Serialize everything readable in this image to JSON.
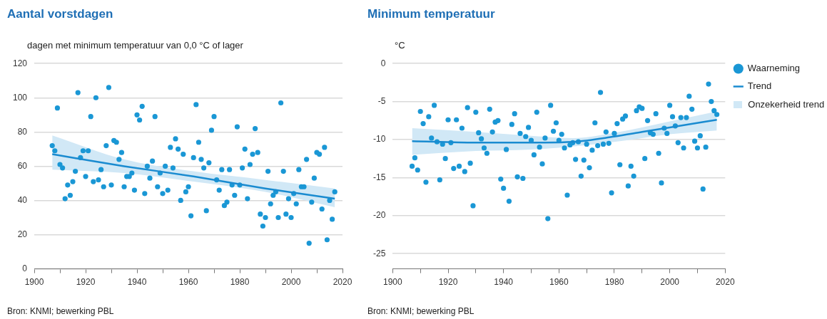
{
  "chart_data": [
    {
      "type": "scatter",
      "title": "Aantal vorstdagen",
      "ylabel": "dagen met minimum temperatuur van 0,0 °C of lager",
      "xlim": [
        1900,
        2020
      ],
      "xticks": [
        1900,
        {
          "value": 1910,
          "label": null
        },
        1920,
        {
          "value": 1930,
          "label": null
        },
        1940,
        {
          "value": 1950,
          "label": null
        },
        1960,
        {
          "value": 1970,
          "label": null
        },
        1980,
        {
          "value": 1990,
          "label": null
        },
        2000,
        {
          "value": 2010,
          "label": null
        },
        2020
      ],
      "ylim": [
        0,
        120
      ],
      "yticks": [
        0,
        20,
        40,
        60,
        80,
        100,
        120
      ],
      "grid": "y",
      "legend": false,
      "line_style": "solid",
      "annotations": [
        "Bron: KNMI; bewerking PBL"
      ],
      "series": [
        {
          "type": "scatter",
          "marker": "circle",
          "color": "#1a97d5",
          "x": [
            1907,
            1908,
            1909,
            1910,
            1911,
            1912,
            1913,
            1914,
            1915,
            1916,
            1917,
            1918,
            1919,
            1920,
            1921,
            1922,
            1923,
            1924,
            1925,
            1926,
            1927,
            1928,
            1929,
            1930,
            1931,
            1932,
            1933,
            1934,
            1935,
            1936,
            1937,
            1938,
            1939,
            1940,
            1941,
            1942,
            1943,
            1944,
            1945,
            1946,
            1947,
            1948,
            1949,
            1950,
            1951,
            1952,
            1953,
            1954,
            1955,
            1956,
            1957,
            1958,
            1959,
            1960,
            1961,
            1962,
            1963,
            1964,
            1965,
            1966,
            1967,
            1968,
            1969,
            1970,
            1971,
            1972,
            1973,
            1974,
            1975,
            1976,
            1977,
            1978,
            1979,
            1980,
            1981,
            1982,
            1983,
            1984,
            1985,
            1986,
            1987,
            1988,
            1989,
            1990,
            1991,
            1992,
            1993,
            1994,
            1995,
            1996,
            1997,
            1998,
            1999,
            2000,
            2001,
            2002,
            2003,
            2004,
            2005,
            2006,
            2007,
            2008,
            2009,
            2010,
            2011,
            2012,
            2013,
            2014,
            2015,
            2016,
            2017
          ],
          "values": [
            72,
            69,
            94,
            61,
            59,
            41,
            49,
            43,
            51,
            57,
            103,
            65,
            69,
            54,
            69,
            89,
            51,
            100,
            52,
            58,
            48,
            72,
            106,
            49,
            75,
            74,
            64,
            68,
            48,
            54,
            54,
            56,
            46,
            90,
            87,
            95,
            44,
            60,
            53,
            63,
            89,
            48,
            56,
            44,
            60,
            46,
            71,
            59,
            76,
            70,
            40,
            67,
            45,
            48,
            31,
            65,
            96,
            74,
            64,
            59,
            34,
            62,
            81,
            89,
            52,
            46,
            58,
            37,
            39,
            58,
            49,
            43,
            83,
            49,
            59,
            70,
            41,
            61,
            67,
            82,
            68,
            32,
            25,
            30,
            57,
            38,
            43,
            45,
            30,
            97,
            57,
            32,
            41,
            30,
            44,
            38,
            58,
            48,
            48,
            64,
            15,
            39,
            53,
            68,
            67,
            35,
            71,
            17,
            40,
            29,
            45
          ]
        },
        {
          "type": "line",
          "marker": "none",
          "color": "#1a8bd0",
          "x": [
            1907,
            1935,
            1962,
            1990,
            2017
          ],
          "values": [
            67,
            60,
            54,
            47,
            41
          ],
          "lower": [
            58,
            56,
            51,
            45,
            36
          ],
          "upper": [
            78,
            64,
            57,
            52,
            47
          ]
        }
      ]
    },
    {
      "type": "scatter",
      "title": "Minimum temperatuur",
      "ylabel": "°C",
      "xlim": [
        1900,
        2020
      ],
      "xticks": [
        1900,
        {
          "value": 1910,
          "label": null
        },
        1920,
        {
          "value": 1930,
          "label": null
        },
        1940,
        {
          "value": 1950,
          "label": null
        },
        1960,
        {
          "value": 1970,
          "label": null
        },
        1980,
        {
          "value": 1990,
          "label": null
        },
        2000,
        {
          "value": 2010,
          "label": null
        },
        2020
      ],
      "ylim": [
        -27,
        0
      ],
      "yticks": [
        -25,
        -20,
        -15,
        -10,
        -5,
        0
      ],
      "grid": "y",
      "legend": "right",
      "line_style": "solid",
      "annotations": [
        "Onzekerheid trend",
        "Bron: KNMI; bewerking PBL"
      ],
      "series": [
        {
          "name": "Waarneming",
          "type": "scatter",
          "marker": "circle",
          "color": "#1a97d5",
          "x": [
            1907,
            1908,
            1909,
            1910,
            1911,
            1912,
            1913,
            1914,
            1915,
            1916,
            1917,
            1918,
            1919,
            1920,
            1921,
            1922,
            1923,
            1924,
            1925,
            1926,
            1927,
            1928,
            1929,
            1930,
            1931,
            1932,
            1933,
            1934,
            1935,
            1936,
            1937,
            1938,
            1939,
            1940,
            1941,
            1942,
            1943,
            1944,
            1945,
            1946,
            1947,
            1948,
            1949,
            1950,
            1951,
            1952,
            1953,
            1954,
            1955,
            1956,
            1957,
            1958,
            1959,
            1960,
            1961,
            1962,
            1963,
            1964,
            1965,
            1966,
            1967,
            1968,
            1969,
            1970,
            1971,
            1972,
            1973,
            1974,
            1975,
            1976,
            1977,
            1978,
            1979,
            1980,
            1981,
            1982,
            1983,
            1984,
            1985,
            1986,
            1987,
            1988,
            1989,
            1990,
            1991,
            1992,
            1993,
            1994,
            1995,
            1996,
            1997,
            1998,
            1999,
            2000,
            2001,
            2002,
            2003,
            2004,
            2005,
            2006,
            2007,
            2008,
            2009,
            2010,
            2011,
            2012,
            2013,
            2014,
            2015,
            2016,
            2017
          ],
          "values": [
            -13.5,
            -12.4,
            -14.0,
            -6.3,
            -7.9,
            -15.6,
            -7.0,
            -9.8,
            -5.5,
            -10.3,
            -15.3,
            -10.6,
            -12.5,
            -7.4,
            -10.4,
            -13.8,
            -7.4,
            -13.5,
            -8.5,
            -14.2,
            -5.8,
            -13.1,
            -18.7,
            -6.4,
            -9.1,
            -9.9,
            -11.1,
            -11.8,
            -6.0,
            -9.0,
            -7.7,
            -7.5,
            -15.2,
            -16.4,
            -11.3,
            -18.1,
            -8.0,
            -6.6,
            -14.9,
            -9.2,
            -15.1,
            -9.6,
            -8.4,
            -10.1,
            -12.0,
            -6.4,
            -11.0,
            -13.2,
            -9.8,
            -20.4,
            -5.5,
            -8.9,
            -7.8,
            -10.1,
            -9.3,
            -11.1,
            -17.3,
            -10.7,
            -10.4,
            -12.6,
            -10.3,
            -14.8,
            -12.7,
            -10.6,
            -13.7,
            -11.4,
            -7.8,
            -10.8,
            -3.8,
            -10.6,
            -9.0,
            -10.5,
            -17.0,
            -9.2,
            -7.9,
            -13.3,
            -7.3,
            -6.9,
            -16.1,
            -13.5,
            -14.8,
            -6.2,
            -5.7,
            -5.9,
            -12.5,
            -7.5,
            -9.1,
            -9.3,
            -6.6,
            -11.8,
            -15.7,
            -8.5,
            -9.2,
            -5.5,
            -7.0,
            -8.2,
            -10.4,
            -7.1,
            -11.1,
            -7.1,
            -4.3,
            -6.0,
            -10.2,
            -11.1,
            -9.5,
            -16.5,
            -11.0,
            -2.7,
            -5.0,
            -6.2,
            -6.7
          ]
        },
        {
          "name": "Trend",
          "type": "line",
          "marker": "none",
          "color": "#1a8bd0",
          "x": [
            1907,
            1930,
            1950,
            1965,
            1980,
            1990,
            2000,
            2017
          ],
          "values": [
            -10.2,
            -10.4,
            -10.4,
            -10.3,
            -9.6,
            -9.0,
            -8.4,
            -7.4
          ],
          "lower": [
            -12.0,
            -11.5,
            -11.3,
            -10.9,
            -10.3,
            -9.8,
            -9.3,
            -8.8
          ],
          "upper": [
            -8.5,
            -9.0,
            -9.5,
            -9.8,
            -9.1,
            -8.4,
            -7.6,
            -6.3
          ]
        }
      ]
    }
  ]
}
